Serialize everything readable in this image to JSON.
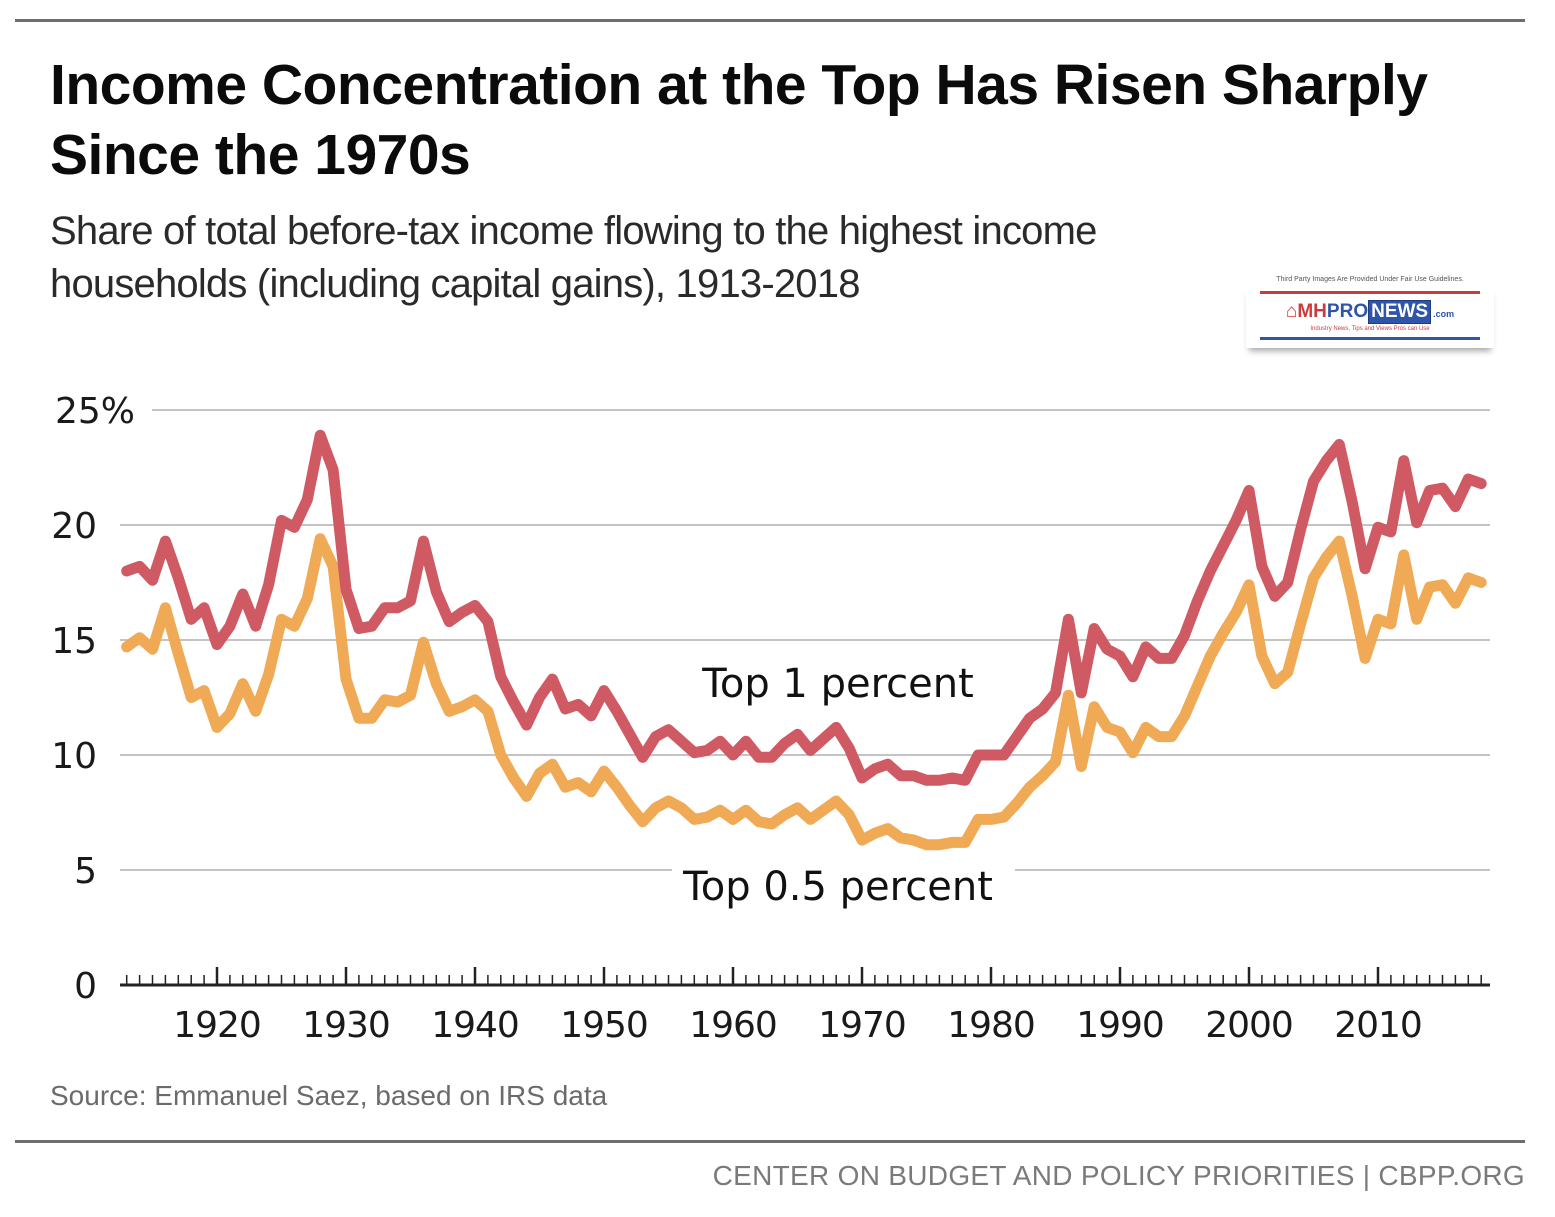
{
  "header": {
    "title": "Income Concentration at the Top Has Risen Sharply Since the 1970s",
    "subtitle": "Share of total before-tax income flowing to the highest income households (including capital gains), 1913-2018"
  },
  "watermark": {
    "disclaimer": "Third Party Images Are Provided Under Fair Use Guidelines.",
    "brand_mh": "MH",
    "brand_pro": "PRO",
    "brand_news": "NEWS",
    "brand_com": ".com",
    "tagline": "Industry News, Tips and Views Pros can Use"
  },
  "source": "Source: Emmanuel Saez, based on IRS data",
  "footer": "CENTER ON BUDGET AND POLICY PRIORITIES | CBPP.ORG",
  "colors": {
    "top1": "#d05a63",
    "top05": "#f0a955",
    "grid": "#c4c4c4",
    "axis": "#222222"
  },
  "chart_data": {
    "type": "line",
    "title": "Income Concentration at the Top Has Risen Sharply Since the 1970s",
    "xlabel": "",
    "ylabel": "",
    "xlim": [
      1913,
      2018
    ],
    "ylim": [
      0,
      25
    ],
    "grid": true,
    "y_ticks": [
      {
        "value": 25,
        "label": "25%"
      },
      {
        "value": 20,
        "label": "20"
      },
      {
        "value": 15,
        "label": "15"
      },
      {
        "value": 10,
        "label": "10"
      },
      {
        "value": 5,
        "label": "5"
      },
      {
        "value": 0,
        "label": "0"
      }
    ],
    "x_ticks": [
      {
        "value": 1920,
        "label": "1920"
      },
      {
        "value": 1930,
        "label": "1930"
      },
      {
        "value": 1940,
        "label": "1940"
      },
      {
        "value": 1950,
        "label": "1950"
      },
      {
        "value": 1960,
        "label": "1960"
      },
      {
        "value": 1970,
        "label": "1970"
      },
      {
        "value": 1980,
        "label": "1980"
      },
      {
        "value": 1990,
        "label": "1990"
      },
      {
        "value": 2000,
        "label": "2000"
      },
      {
        "value": 2010,
        "label": "2010"
      }
    ],
    "legend": "inline-labels",
    "x": [
      1913,
      1914,
      1915,
      1916,
      1917,
      1918,
      1919,
      1920,
      1921,
      1922,
      1923,
      1924,
      1925,
      1926,
      1927,
      1928,
      1929,
      1930,
      1931,
      1932,
      1933,
      1934,
      1935,
      1936,
      1937,
      1938,
      1939,
      1940,
      1941,
      1942,
      1943,
      1944,
      1945,
      1946,
      1947,
      1948,
      1949,
      1950,
      1951,
      1952,
      1953,
      1954,
      1955,
      1956,
      1957,
      1958,
      1959,
      1960,
      1961,
      1962,
      1963,
      1964,
      1965,
      1966,
      1967,
      1968,
      1969,
      1970,
      1971,
      1972,
      1973,
      1974,
      1975,
      1976,
      1977,
      1978,
      1979,
      1980,
      1981,
      1982,
      1983,
      1984,
      1985,
      1986,
      1987,
      1988,
      1989,
      1990,
      1991,
      1992,
      1993,
      1994,
      1995,
      1996,
      1997,
      1998,
      1999,
      2000,
      2001,
      2002,
      2003,
      2004,
      2005,
      2006,
      2007,
      2008,
      2009,
      2010,
      2011,
      2012,
      2013,
      2014,
      2015,
      2016,
      2017,
      2018
    ],
    "series": [
      {
        "name": "Top 1 percent",
        "label": "Top 1 percent",
        "color": "#d05a63",
        "values": [
          18.0,
          18.2,
          17.6,
          19.3,
          17.7,
          15.9,
          16.4,
          14.8,
          15.6,
          17.0,
          15.6,
          17.4,
          20.2,
          19.9,
          21.1,
          23.9,
          22.4,
          17.2,
          15.5,
          15.6,
          16.4,
          16.4,
          16.7,
          19.3,
          17.1,
          15.8,
          16.2,
          16.5,
          15.8,
          13.4,
          12.3,
          11.3,
          12.5,
          13.3,
          12.0,
          12.2,
          11.7,
          12.8,
          11.9,
          10.9,
          9.9,
          10.8,
          11.1,
          10.6,
          10.1,
          10.2,
          10.6,
          10.0,
          10.6,
          9.9,
          9.9,
          10.5,
          10.9,
          10.2,
          10.7,
          11.2,
          10.3,
          9.0,
          9.4,
          9.6,
          9.1,
          9.1,
          8.9,
          8.9,
          9.0,
          8.9,
          10.0,
          10.0,
          10.0,
          10.8,
          11.6,
          12.0,
          12.7,
          15.9,
          12.7,
          15.5,
          14.6,
          14.3,
          13.4,
          14.7,
          14.2,
          14.2,
          15.2,
          16.7,
          18.0,
          19.1,
          20.2,
          21.5,
          18.2,
          16.9,
          17.5,
          19.8,
          21.9,
          22.8,
          23.5,
          21.0,
          18.1,
          19.9,
          19.7,
          22.8,
          20.1,
          21.5,
          21.6,
          20.8,
          22.0,
          21.8
        ]
      },
      {
        "name": "Top 0.5 percent",
        "label": "Top 0.5 percent",
        "color": "#f0a955",
        "values": [
          14.7,
          15.1,
          14.6,
          16.4,
          14.4,
          12.5,
          12.8,
          11.2,
          11.8,
          13.1,
          11.9,
          13.5,
          15.9,
          15.6,
          16.8,
          19.4,
          18.2,
          13.3,
          11.6,
          11.6,
          12.4,
          12.3,
          12.6,
          14.9,
          13.1,
          11.9,
          12.1,
          12.4,
          11.9,
          10.0,
          9.0,
          8.2,
          9.2,
          9.6,
          8.6,
          8.8,
          8.4,
          9.3,
          8.6,
          7.8,
          7.1,
          7.7,
          8.0,
          7.7,
          7.2,
          7.3,
          7.6,
          7.2,
          7.6,
          7.1,
          7.0,
          7.4,
          7.7,
          7.2,
          7.6,
          8.0,
          7.4,
          6.3,
          6.6,
          6.8,
          6.4,
          6.3,
          6.1,
          6.1,
          6.2,
          6.2,
          7.2,
          7.2,
          7.3,
          7.9,
          8.6,
          9.1,
          9.7,
          12.6,
          9.5,
          12.1,
          11.2,
          11.0,
          10.1,
          11.2,
          10.8,
          10.8,
          11.7,
          13.0,
          14.3,
          15.3,
          16.2,
          17.4,
          14.3,
          13.1,
          13.6,
          15.7,
          17.7,
          18.6,
          19.3,
          16.9,
          14.2,
          15.9,
          15.7,
          18.7,
          15.9,
          17.3,
          17.4,
          16.6,
          17.7,
          17.5
        ]
      }
    ]
  }
}
